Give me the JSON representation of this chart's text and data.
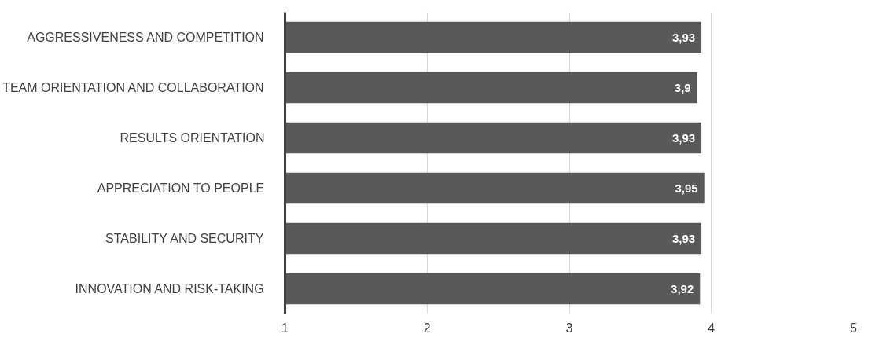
{
  "chart_data": {
    "type": "bar",
    "orientation": "horizontal",
    "categories": [
      "AGGRESSIVENESS AND COMPETITION",
      "TEAM ORIENTATION AND COLLABORATION",
      "RESULTS ORIENTATION",
      "APPRECIATION TO PEOPLE",
      "STABILITY AND SECURITY",
      "INNOVATION AND RISK-TAKING"
    ],
    "values": [
      3.93,
      3.9,
      3.93,
      3.95,
      3.93,
      3.92
    ],
    "value_labels": [
      "3,93",
      "3,9",
      "3,93",
      "3,95",
      "3,93",
      "3,92"
    ],
    "color": "#595959",
    "xlim": [
      1,
      5
    ],
    "xticks": [
      1,
      2,
      3,
      4,
      5
    ],
    "grid": "x"
  }
}
